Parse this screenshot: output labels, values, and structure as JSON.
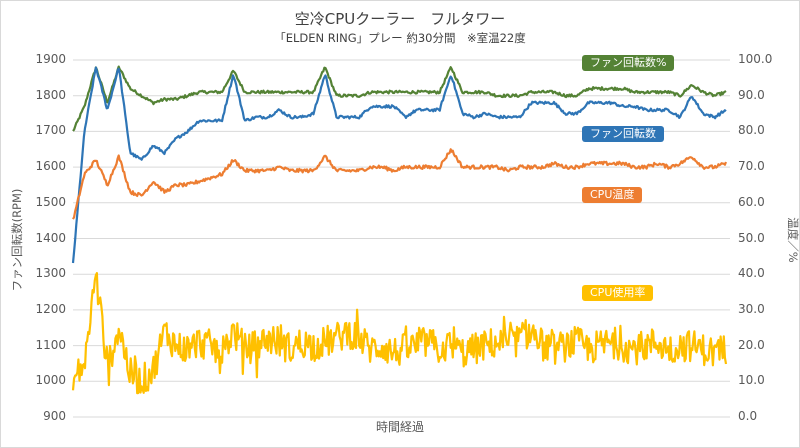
{
  "chart_data": {
    "type": "line",
    "title": "空冷CPUクーラー　フルタワー",
    "subtitle": "「ELDEN RING」プレー 約30分間　※室温22度",
    "xlabel": "時間経過",
    "ylabel_left": "ファン回転数(RPM)",
    "ylabel_right": "温度／%",
    "ylim_left": [
      900,
      1900
    ],
    "ylim_right": [
      0,
      100
    ],
    "yticks_left": [
      "1900",
      "1800",
      "1700",
      "1600",
      "1500",
      "1400",
      "1300",
      "1200",
      "1100",
      "1000",
      "900"
    ],
    "yticks_right": [
      "100.0",
      "90.0",
      "80.0",
      "70.0",
      "60.0",
      "50.0",
      "40.0",
      "30.0",
      "20.0",
      "10.0",
      "0.0"
    ],
    "grid": true,
    "legend_position": "inline-labels",
    "series": [
      {
        "name": "ファン回転数%",
        "axis": "right",
        "color": "#548235",
        "approx_values": [
          80,
          87,
          98,
          88,
          98,
          92,
          90,
          88,
          89,
          89,
          90,
          91,
          91,
          91,
          97,
          91,
          91,
          91,
          91,
          91,
          91,
          91,
          98,
          90,
          90,
          90,
          91,
          91,
          91,
          91,
          91,
          91,
          91,
          98,
          91,
          91,
          91,
          90,
          90,
          90,
          91,
          91,
          91,
          90,
          90,
          92,
          92,
          92,
          92,
          91,
          91,
          91,
          91,
          90,
          93,
          91,
          90,
          91
        ]
      },
      {
        "name": "ファン回転数",
        "axis": "left",
        "unit": "RPM",
        "color": "#2e75b6",
        "approx_values": [
          1330,
          1700,
          1880,
          1760,
          1880,
          1640,
          1620,
          1660,
          1640,
          1680,
          1700,
          1730,
          1730,
          1730,
          1860,
          1730,
          1740,
          1740,
          1760,
          1740,
          1740,
          1750,
          1860,
          1740,
          1740,
          1740,
          1770,
          1770,
          1770,
          1740,
          1760,
          1760,
          1760,
          1860,
          1750,
          1740,
          1750,
          1740,
          1740,
          1740,
          1780,
          1780,
          1780,
          1750,
          1750,
          1780,
          1780,
          1780,
          1770,
          1770,
          1760,
          1760,
          1760,
          1740,
          1800,
          1750,
          1740,
          1760
        ]
      },
      {
        "name": "CPU温度",
        "axis": "right",
        "color": "#ed7d31",
        "approx_values": [
          55,
          68,
          72,
          65,
          73,
          63,
          62,
          66,
          63,
          65,
          65,
          66,
          67,
          68,
          72,
          69,
          69,
          69,
          70,
          69,
          69,
          69,
          73,
          69,
          69,
          69,
          70,
          70,
          69,
          70,
          70,
          70,
          70,
          75,
          70,
          70,
          70,
          70,
          69,
          70,
          70,
          70,
          71,
          70,
          70,
          71,
          71,
          71,
          71,
          70,
          70,
          71,
          70,
          71,
          73,
          70,
          70,
          71
        ]
      },
      {
        "name": "CPU使用率",
        "axis": "right",
        "color": "#ffc000",
        "approx_values": [
          10,
          15,
          40,
          14,
          25,
          12,
          10,
          13,
          24,
          20,
          19,
          21,
          20,
          18,
          24,
          19,
          20,
          22,
          21,
          19,
          21,
          20,
          21,
          22,
          24,
          22,
          19,
          20,
          18,
          19,
          20,
          21,
          19,
          20,
          18,
          19,
          20,
          21,
          20,
          22,
          24,
          20,
          19,
          20,
          21,
          19,
          20,
          21,
          20,
          19,
          20,
          21,
          19,
          20,
          20,
          19,
          18,
          19
        ]
      }
    ]
  },
  "labels": {
    "fan_pct": "ファン回転数%",
    "fan_rpm": "ファン回転数",
    "cpu_temp": "CPU温度",
    "cpu_usage": "CPU使用率"
  }
}
